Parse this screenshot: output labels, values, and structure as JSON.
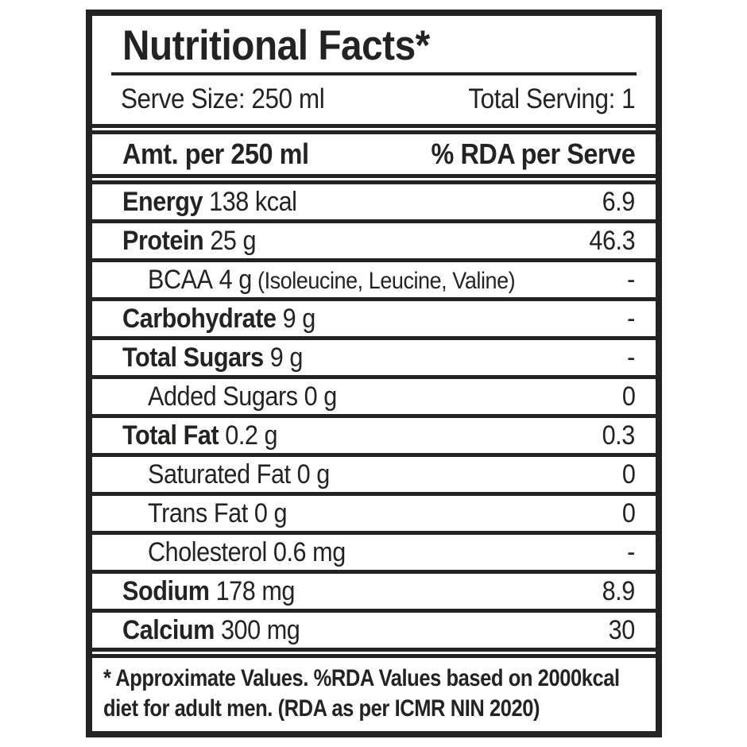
{
  "page": {
    "background": "#ffffff"
  },
  "label": {
    "ink_color": "#242321",
    "title": "Nutritional Facts*",
    "serve_size_label": "Serve Size: 250 ml",
    "total_serving_label": "Total Serving: 1",
    "column_amount_header": "Amt. per 250 ml",
    "column_rda_header": "% RDA per Serve",
    "rows": [
      {
        "name": "Energy",
        "amount": "138 kcal",
        "rda": "6.9",
        "bold": true,
        "indent": false
      },
      {
        "name": "Protein",
        "amount": "25 g",
        "rda": "46.3",
        "bold": true,
        "indent": false
      },
      {
        "name": "BCAA",
        "amount": "4 g",
        "note": "(Isoleucine, Leucine, Valine)",
        "rda": "-",
        "bold": false,
        "indent": true
      },
      {
        "name": "Carbohydrate",
        "amount": "9 g",
        "rda": "-",
        "bold": true,
        "indent": false
      },
      {
        "name": "Total Sugars",
        "amount": "9 g",
        "rda": "-",
        "bold": true,
        "indent": false
      },
      {
        "name": "Added Sugars",
        "amount": "0 g",
        "rda": "0",
        "bold": false,
        "indent": true
      },
      {
        "name": "Total Fat",
        "amount": "0.2 g",
        "rda": "0.3",
        "bold": true,
        "indent": false
      },
      {
        "name": "Saturated Fat",
        "amount": "0 g",
        "rda": "0",
        "bold": false,
        "indent": true
      },
      {
        "name": "Trans Fat",
        "amount": "0 g",
        "rda": "0",
        "bold": false,
        "indent": true
      },
      {
        "name": "Cholesterol",
        "amount": "0.6 mg",
        "rda": "-",
        "bold": false,
        "indent": true
      },
      {
        "name": "Sodium",
        "amount": "178 mg",
        "rda": "8.9",
        "bold": true,
        "indent": false
      },
      {
        "name": "Calcium",
        "amount": "300 mg",
        "rda": "30",
        "bold": true,
        "indent": false
      }
    ],
    "footnote_line1": "* Approximate Values. %RDA Values based on 2000kcal",
    "footnote_line2": "diet for adult men. (RDA as per ICMR NIN 2020)"
  }
}
